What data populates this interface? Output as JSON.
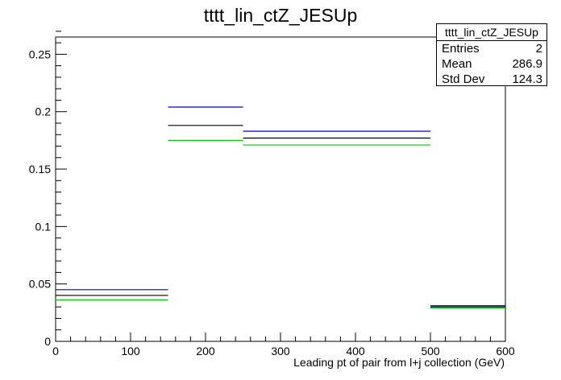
{
  "chart_data": {
    "type": "step-histogram",
    "title": "tttt_lin_ctZ_JESUp",
    "xlabel": "Leading pt of pair from l+j collection (GeV)",
    "ylabel": "",
    "xlim": [
      0,
      600
    ],
    "ylim": [
      0,
      0.265
    ],
    "x_ticks": [
      "0",
      "100",
      "200",
      "300",
      "400",
      "500",
      "600"
    ],
    "y_ticks": [
      "0",
      "0.05",
      "0.1",
      "0.15",
      "0.2",
      "0.25"
    ],
    "bin_edges": [
      0,
      150,
      250,
      500,
      600
    ],
    "series": [
      {
        "color": "#0000cc",
        "values": [
          0.045,
          0.204,
          0.183,
          0.031
        ]
      },
      {
        "color": "#000000",
        "values": [
          0.04,
          0.188,
          0.177,
          0.03
        ]
      },
      {
        "color": "#00cc00",
        "values": [
          0.036,
          0.175,
          0.171,
          0.029
        ]
      }
    ],
    "stats_box": {
      "name": "tttt_lin_ctZ_JESUp",
      "entries_label": "Entries",
      "entries": "2",
      "mean_label": "Mean",
      "mean": "286.9",
      "stddev_label": "Std Dev",
      "stddev": "124.3"
    }
  }
}
